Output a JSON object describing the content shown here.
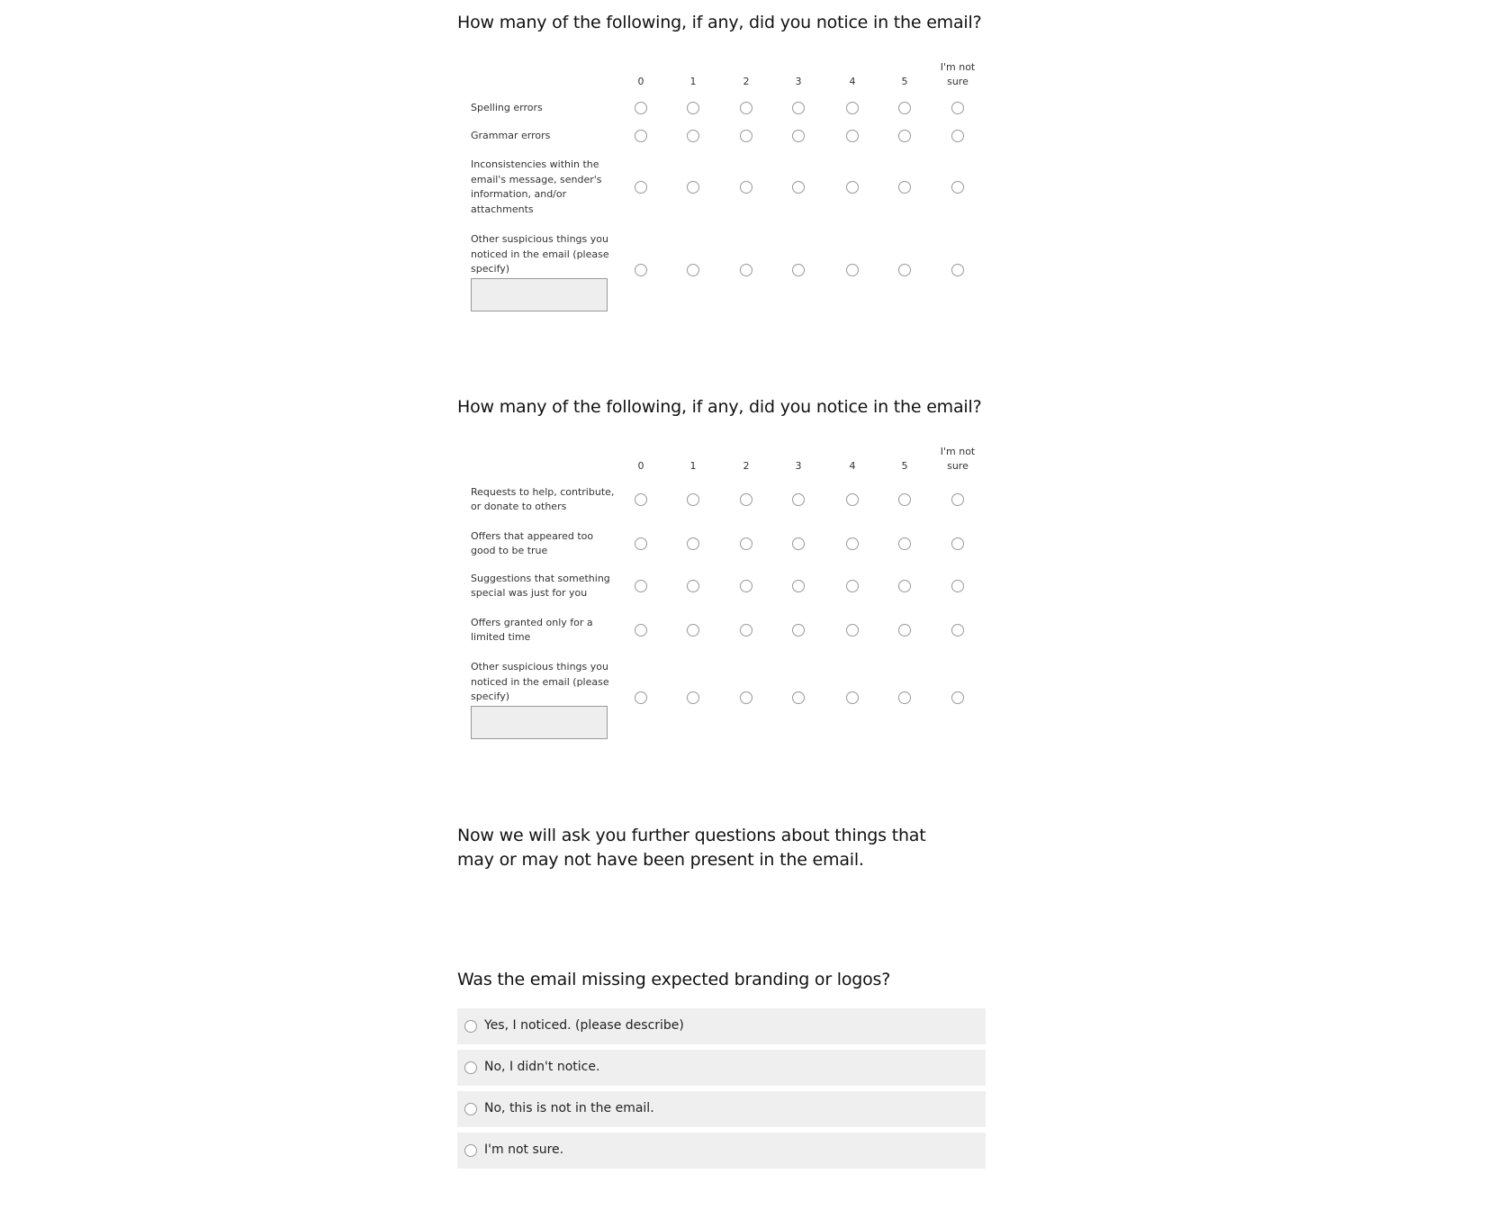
{
  "matrix_questions": [
    {
      "title": "How many of the following, if any, did you notice in the email?",
      "columns": [
        "0",
        "1",
        "2",
        "3",
        "4",
        "5",
        "I'm not sure"
      ],
      "rows": [
        {
          "label": "Spelling errors"
        },
        {
          "label": "Grammar errors"
        },
        {
          "label": "Inconsistencies within the email's message, sender's information, and/or attachments"
        },
        {
          "label": "Other suspicious things you noticed in the email (please specify)",
          "text_entry": ""
        }
      ]
    },
    {
      "title": "How many of the following, if any, did you notice in the email?",
      "columns": [
        "0",
        "1",
        "2",
        "3",
        "4",
        "5",
        "I'm not sure"
      ],
      "rows": [
        {
          "label": "Requests to help, contribute, or donate to others"
        },
        {
          "label": "Offers that appeared too good to be true"
        },
        {
          "label": "Suggestions that something special was just for you"
        },
        {
          "label": "Offers granted only for a limited time"
        },
        {
          "label": "Other suspicious things you noticed in the email (please specify)",
          "text_entry": ""
        }
      ]
    }
  ],
  "intro_text": "Now we will ask you further questions about things that may or may not have been present in the email.",
  "branding_question": {
    "title": "Was the email missing expected branding or logos?",
    "options": [
      "Yes, I noticed. (please describe)",
      "No, I didn't notice.",
      "No, this is not in the email.",
      "I'm not sure."
    ]
  }
}
